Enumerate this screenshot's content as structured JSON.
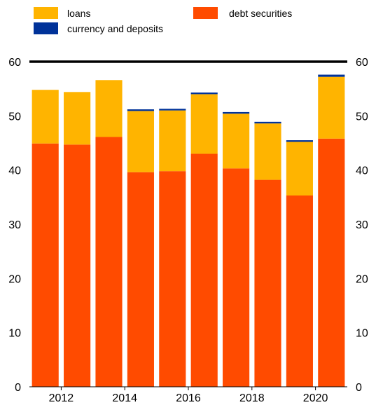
{
  "chart_data": {
    "type": "bar",
    "stacked": true,
    "categories": [
      "2011",
      "2012",
      "2013",
      "2014",
      "2015",
      "2016",
      "2017",
      "2018",
      "2019",
      "2020"
    ],
    "x_tick_labels": [
      "2012",
      "2014",
      "2016",
      "2018",
      "2020"
    ],
    "series": [
      {
        "name": "debt securities",
        "color": "#ff4b00",
        "values": [
          44.9,
          44.7,
          46.1,
          39.6,
          39.8,
          43.0,
          40.3,
          38.2,
          35.3,
          45.8
        ]
      },
      {
        "name": "loans",
        "color": "#ffb400",
        "values": [
          9.9,
          9.7,
          10.5,
          11.3,
          11.2,
          11.0,
          10.1,
          10.4,
          9.9,
          11.4
        ]
      },
      {
        "name": "currency and deposits",
        "color": "#003299",
        "values": [
          0.0,
          0.0,
          0.0,
          0.3,
          0.3,
          0.3,
          0.3,
          0.3,
          0.3,
          0.4
        ]
      }
    ],
    "legend_items": [
      "loans",
      "debt securities",
      "currency and deposits"
    ],
    "y_ticks": [
      "0",
      "10",
      "20",
      "30",
      "40",
      "50",
      "60"
    ],
    "ylim": [
      0,
      60
    ],
    "grid": false,
    "legend_position": "top"
  }
}
